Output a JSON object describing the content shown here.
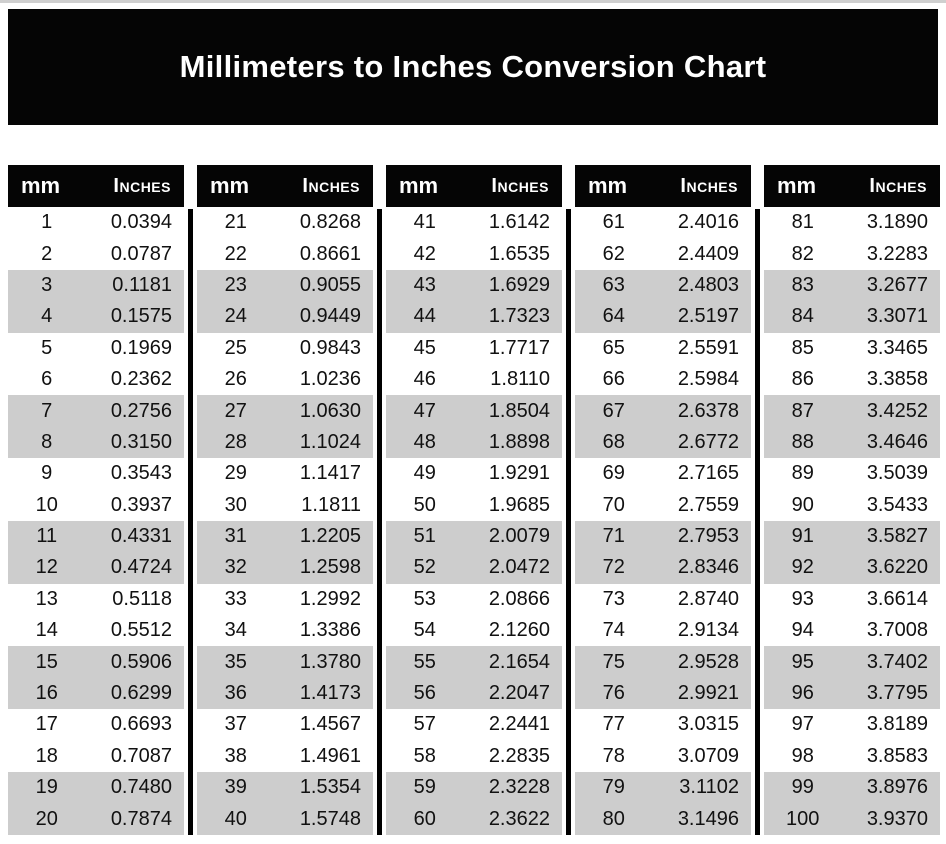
{
  "title": "Millimeters to Inches Conversion Chart",
  "table_headers": {
    "mm": "mm",
    "inches": "Inches"
  },
  "colors": {
    "banner_bg": "#050505",
    "banner_text": "#ffffff",
    "header_bg": "#050505",
    "header_text": "#ffffff",
    "row_shade": "#cdcdcd",
    "divider": "#000000",
    "body_text": "#111111"
  },
  "tables": [
    {
      "rows": [
        [
          "1",
          "0.0394"
        ],
        [
          "2",
          "0.0787"
        ],
        [
          "3",
          "0.1181"
        ],
        [
          "4",
          "0.1575"
        ],
        [
          "5",
          "0.1969"
        ],
        [
          "6",
          "0.2362"
        ],
        [
          "7",
          "0.2756"
        ],
        [
          "8",
          "0.3150"
        ],
        [
          "9",
          "0.3543"
        ],
        [
          "10",
          "0.3937"
        ],
        [
          "11",
          "0.4331"
        ],
        [
          "12",
          "0.4724"
        ],
        [
          "13",
          "0.5118"
        ],
        [
          "14",
          "0.5512"
        ],
        [
          "15",
          "0.5906"
        ],
        [
          "16",
          "0.6299"
        ],
        [
          "17",
          "0.6693"
        ],
        [
          "18",
          "0.7087"
        ],
        [
          "19",
          "0.7480"
        ],
        [
          "20",
          "0.7874"
        ]
      ]
    },
    {
      "rows": [
        [
          "21",
          "0.8268"
        ],
        [
          "22",
          "0.8661"
        ],
        [
          "23",
          "0.9055"
        ],
        [
          "24",
          "0.9449"
        ],
        [
          "25",
          "0.9843"
        ],
        [
          "26",
          "1.0236"
        ],
        [
          "27",
          "1.0630"
        ],
        [
          "28",
          "1.1024"
        ],
        [
          "29",
          "1.1417"
        ],
        [
          "30",
          "1.1811"
        ],
        [
          "31",
          "1.2205"
        ],
        [
          "32",
          "1.2598"
        ],
        [
          "33",
          "1.2992"
        ],
        [
          "34",
          "1.3386"
        ],
        [
          "35",
          "1.3780"
        ],
        [
          "36",
          "1.4173"
        ],
        [
          "37",
          "1.4567"
        ],
        [
          "38",
          "1.4961"
        ],
        [
          "39",
          "1.5354"
        ],
        [
          "40",
          "1.5748"
        ]
      ]
    },
    {
      "rows": [
        [
          "41",
          "1.6142"
        ],
        [
          "42",
          "1.6535"
        ],
        [
          "43",
          "1.6929"
        ],
        [
          "44",
          "1.7323"
        ],
        [
          "45",
          "1.7717"
        ],
        [
          "46",
          "1.8110"
        ],
        [
          "47",
          "1.8504"
        ],
        [
          "48",
          "1.8898"
        ],
        [
          "49",
          "1.9291"
        ],
        [
          "50",
          "1.9685"
        ],
        [
          "51",
          "2.0079"
        ],
        [
          "52",
          "2.0472"
        ],
        [
          "53",
          "2.0866"
        ],
        [
          "54",
          "2.1260"
        ],
        [
          "55",
          "2.1654"
        ],
        [
          "56",
          "2.2047"
        ],
        [
          "57",
          "2.2441"
        ],
        [
          "58",
          "2.2835"
        ],
        [
          "59",
          "2.3228"
        ],
        [
          "60",
          "2.3622"
        ]
      ]
    },
    {
      "rows": [
        [
          "61",
          "2.4016"
        ],
        [
          "62",
          "2.4409"
        ],
        [
          "63",
          "2.4803"
        ],
        [
          "64",
          "2.5197"
        ],
        [
          "65",
          "2.5591"
        ],
        [
          "66",
          "2.5984"
        ],
        [
          "67",
          "2.6378"
        ],
        [
          "68",
          "2.6772"
        ],
        [
          "69",
          "2.7165"
        ],
        [
          "70",
          "2.7559"
        ],
        [
          "71",
          "2.7953"
        ],
        [
          "72",
          "2.8346"
        ],
        [
          "73",
          "2.8740"
        ],
        [
          "74",
          "2.9134"
        ],
        [
          "75",
          "2.9528"
        ],
        [
          "76",
          "2.9921"
        ],
        [
          "77",
          "3.0315"
        ],
        [
          "78",
          "3.0709"
        ],
        [
          "79",
          "3.1102"
        ],
        [
          "80",
          "3.1496"
        ]
      ]
    },
    {
      "rows": [
        [
          "81",
          "3.1890"
        ],
        [
          "82",
          "3.2283"
        ],
        [
          "83",
          "3.2677"
        ],
        [
          "84",
          "3.3071"
        ],
        [
          "85",
          "3.3465"
        ],
        [
          "86",
          "3.3858"
        ],
        [
          "87",
          "3.4252"
        ],
        [
          "88",
          "3.4646"
        ],
        [
          "89",
          "3.5039"
        ],
        [
          "90",
          "3.5433"
        ],
        [
          "91",
          "3.5827"
        ],
        [
          "92",
          "3.6220"
        ],
        [
          "93",
          "3.6614"
        ],
        [
          "94",
          "3.7008"
        ],
        [
          "95",
          "3.7402"
        ],
        [
          "96",
          "3.7795"
        ],
        [
          "97",
          "3.8189"
        ],
        [
          "98",
          "3.8583"
        ],
        [
          "99",
          "3.8976"
        ],
        [
          "100",
          "3.9370"
        ]
      ]
    }
  ]
}
